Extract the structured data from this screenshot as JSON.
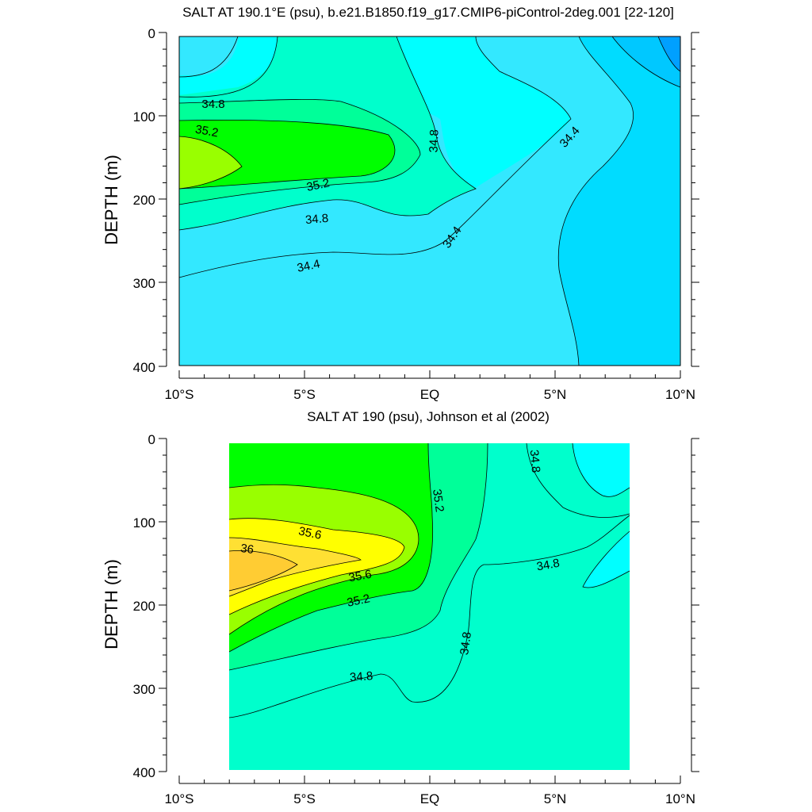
{
  "chart_data": [
    {
      "type": "contour",
      "title": "SALT AT 190.1°E (psu), b.e21.B1850.f19_g17.CMIP6-piControl-2deg.001 [22-120]",
      "xlabel": "",
      "ylabel": "DEPTH (m)",
      "xlim": [
        -10,
        10
      ],
      "ylim": [
        400,
        0
      ],
      "x_ticks": [
        -10,
        -5,
        0,
        5,
        10
      ],
      "x_tick_labels": [
        "10°S",
        "5°S",
        "EQ",
        "5°N",
        "10°N"
      ],
      "y_ticks": [
        0,
        100,
        200,
        300,
        400
      ],
      "y_tick_labels": [
        "0",
        "100",
        "200",
        "300",
        "400"
      ],
      "levels": [
        34.0,
        34.2,
        34.4,
        34.6,
        34.8,
        35.0,
        35.2,
        35.4
      ],
      "colors": {
        "below_34.0": "#00a0ff",
        "34.0_34.2": "#00c8ff",
        "34.2_34.4": "#00dcff",
        "34.4_34.6": "#33e8ff",
        "34.6_34.8": "#00ffff",
        "34.8_35.0": "#00ffcc",
        "35.0_35.2": "#00ff99",
        "35.2_35.4": "#00ff00",
        "above_35.4": "#99ff00"
      },
      "contour_labels": [
        "34.8",
        "35.2",
        "35.2",
        "34.8",
        "34.4",
        "34.8",
        "34.4",
        "34.4"
      ]
    },
    {
      "type": "contour",
      "title": "SALT AT 190 (psu), Johnson et al (2002)",
      "xlabel": "",
      "ylabel": "DEPTH (m)",
      "xlim": [
        -10,
        10
      ],
      "ylim": [
        400,
        0
      ],
      "data_x_extent": [
        -8,
        8
      ],
      "x_ticks": [
        -10,
        -5,
        0,
        5,
        10
      ],
      "x_tick_labels": [
        "10°S",
        "5°S",
        "EQ",
        "5°N",
        "10°N"
      ],
      "y_ticks": [
        0,
        100,
        200,
        300,
        400
      ],
      "y_tick_labels": [
        "0",
        "100",
        "200",
        "300",
        "400"
      ],
      "levels": [
        34.6,
        34.8,
        35.0,
        35.2,
        35.4,
        35.6,
        35.8,
        36.0
      ],
      "colors": {
        "34.6_34.8": "#00ffff",
        "34.8_35.0": "#00ffcc",
        "35.0_35.2": "#00ff99",
        "35.2_35.4": "#00ff00",
        "35.4_35.6": "#99ff00",
        "35.6_35.8": "#ffff00",
        "35.8_36.0": "#ffe033",
        "above_36.0": "#ffcc33"
      },
      "contour_labels": [
        "35.6",
        "36",
        "35.6",
        "35.2",
        "35.2",
        "34.8",
        "34.8",
        "34.8",
        "34.8"
      ]
    }
  ]
}
